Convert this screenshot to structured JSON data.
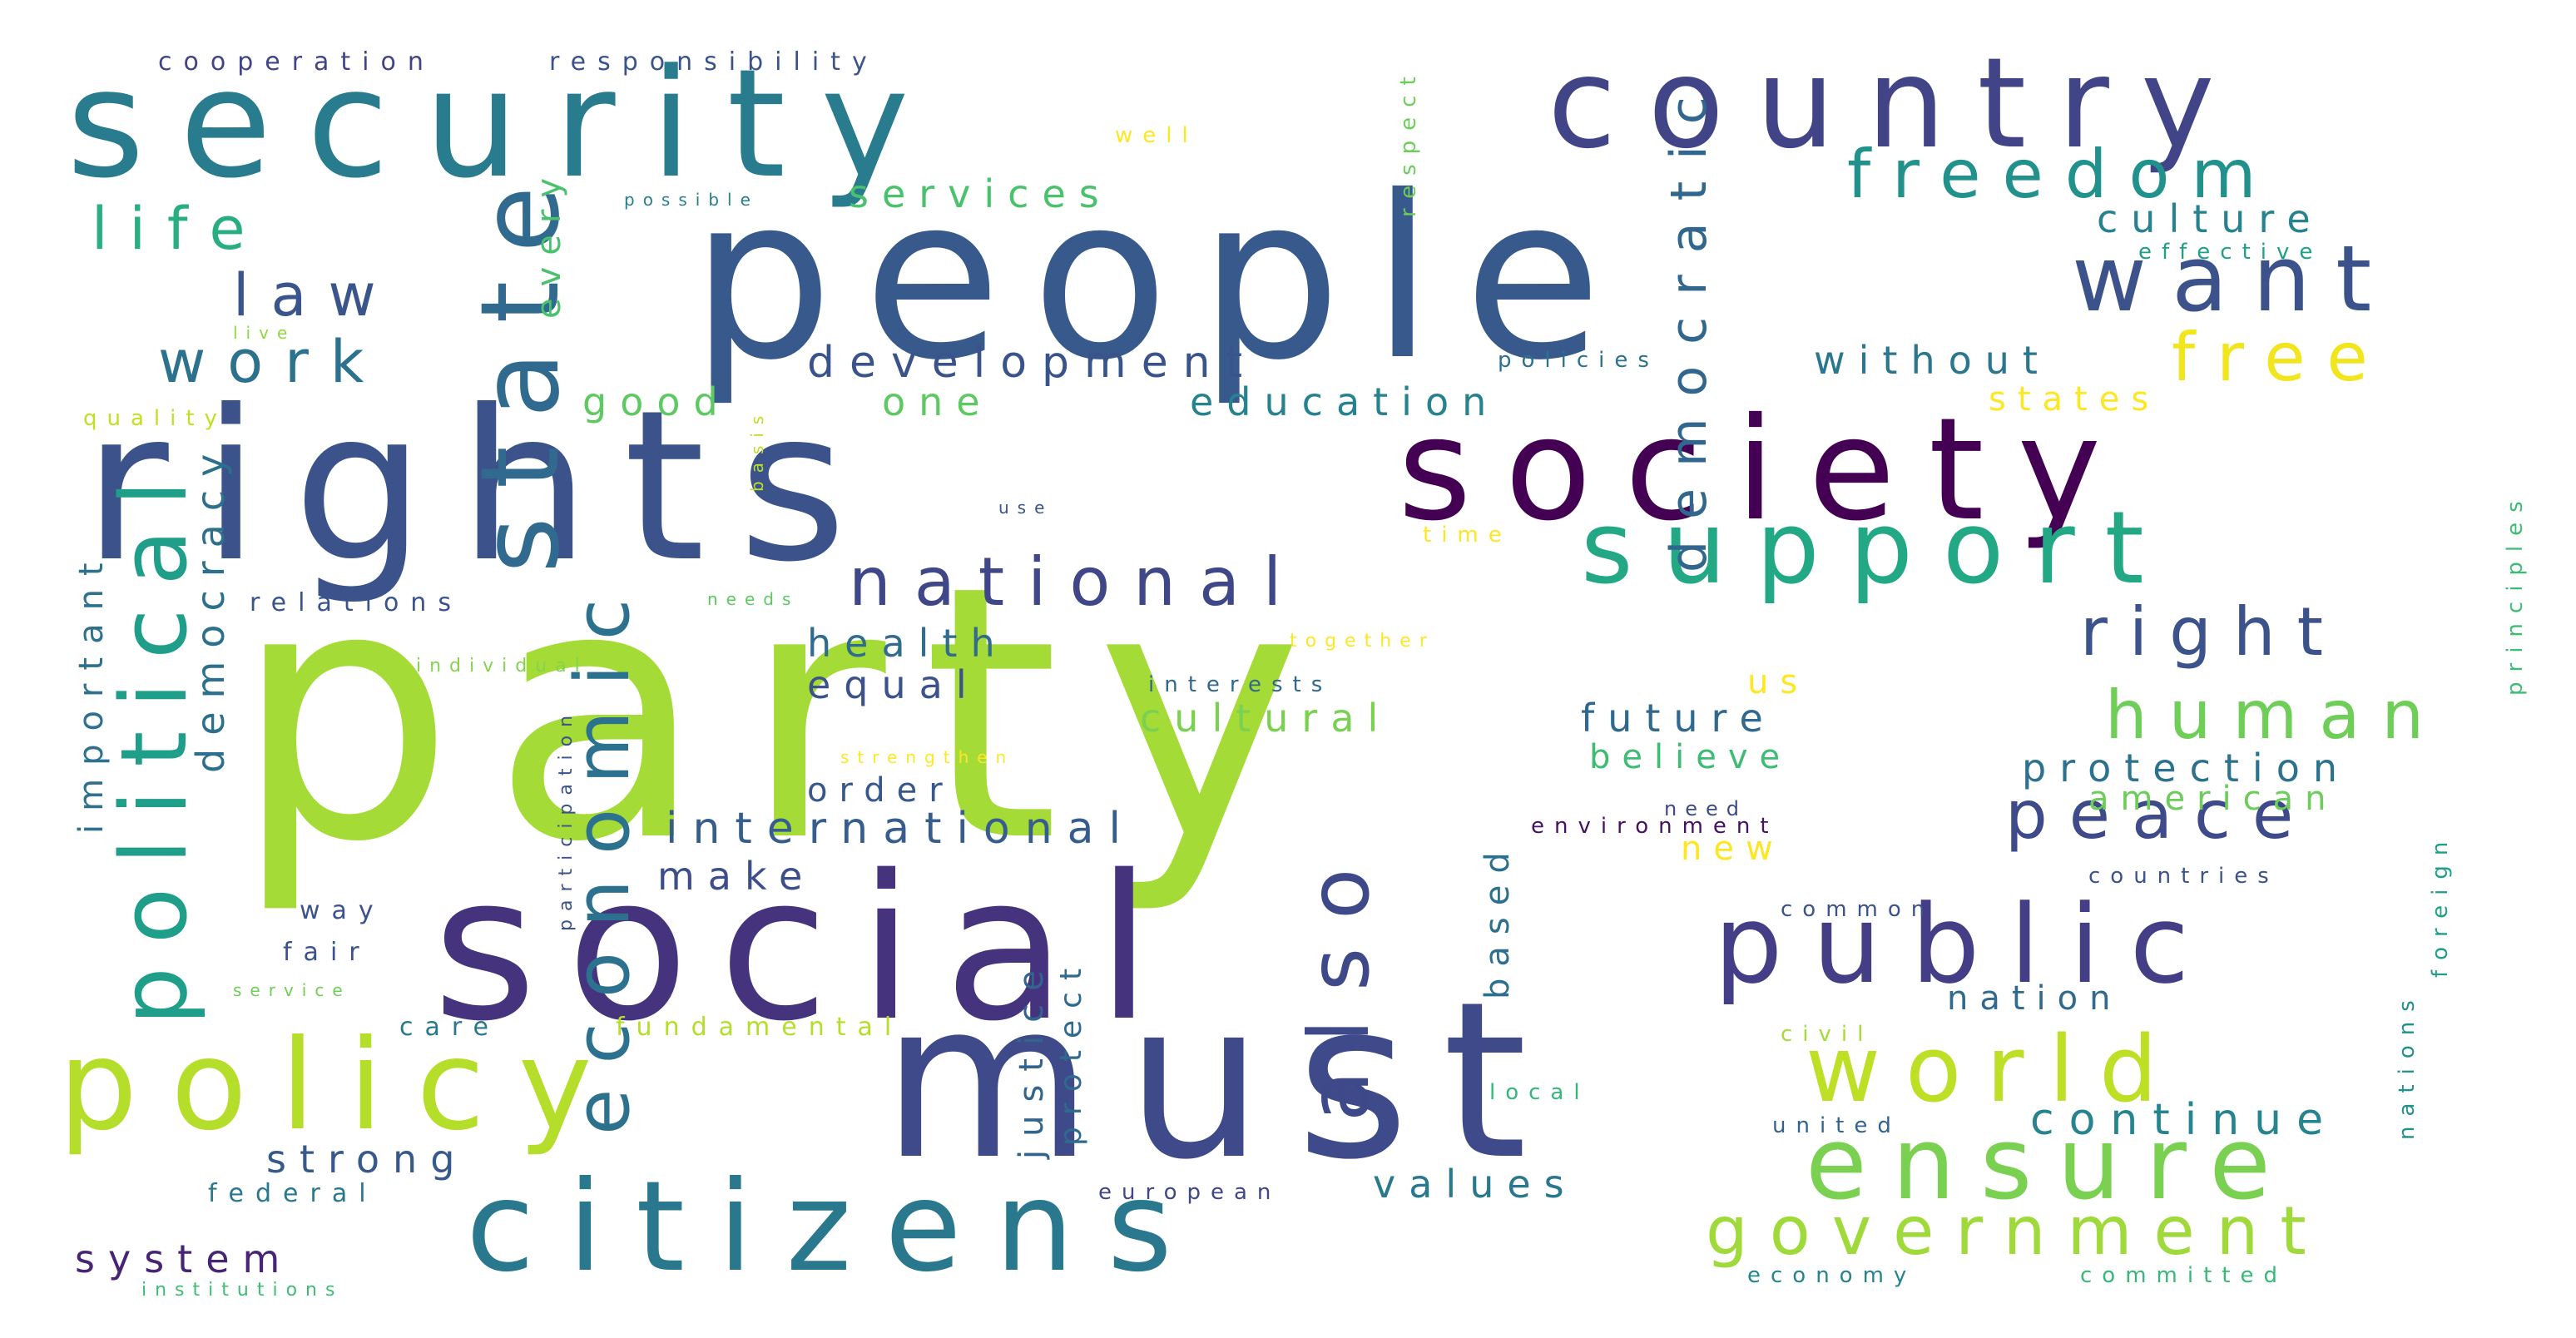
{
  "words": [
    {
      "text": "party",
      "color": "#a5db36"
    },
    {
      "text": "people",
      "color": "#38598c"
    },
    {
      "text": "rights",
      "color": "#3b528b"
    },
    {
      "text": "social",
      "color": "#46337e"
    },
    {
      "text": "must",
      "color": "#3e4a89"
    },
    {
      "text": "security",
      "color": "#287c8e"
    },
    {
      "text": "country",
      "color": "#414487"
    },
    {
      "text": "society",
      "color": "#440154"
    },
    {
      "text": "public",
      "color": "#433e85"
    },
    {
      "text": "citizens",
      "color": "#2a788e"
    },
    {
      "text": "policy",
      "color": "#b5de2b"
    },
    {
      "text": "state",
      "color": "#306a8e"
    },
    {
      "text": "support",
      "color": "#22a884"
    },
    {
      "text": "also",
      "color": "#3e4989"
    },
    {
      "text": "economic",
      "color": "#2c728e"
    },
    {
      "text": "political",
      "color": "#1f9e89"
    },
    {
      "text": "ensure",
      "color": "#7ad151"
    },
    {
      "text": "world",
      "color": "#bddf26"
    },
    {
      "text": "want",
      "color": "#3b528b"
    },
    {
      "text": "national",
      "color": "#3f4788"
    },
    {
      "text": "freedom",
      "color": "#21918c"
    },
    {
      "text": "government",
      "color": "#9fda3a"
    },
    {
      "text": "right",
      "color": "#3b528b"
    },
    {
      "text": "human",
      "color": "#6ece58"
    },
    {
      "text": "peace",
      "color": "#3e4a89"
    },
    {
      "text": "free",
      "color": "#f1e51d"
    },
    {
      "text": "life",
      "color": "#28ae80"
    },
    {
      "text": "work",
      "color": "#2c718e"
    },
    {
      "text": "law",
      "color": "#3a548c"
    },
    {
      "text": "democratic",
      "color": "#31668e"
    },
    {
      "text": "international",
      "color": "#365d8d"
    },
    {
      "text": "development",
      "color": "#3a538b"
    },
    {
      "text": "continue",
      "color": "#25848e"
    },
    {
      "text": "democracy",
      "color": "#2d708e"
    },
    {
      "text": "cultural",
      "color": "#7ad151"
    },
    {
      "text": "services",
      "color": "#4ac16d"
    },
    {
      "text": "important",
      "color": "#2d718e"
    },
    {
      "text": "education",
      "color": "#26828e"
    },
    {
      "text": "health",
      "color": "#2f6c8e"
    },
    {
      "text": "future",
      "color": "#31688e"
    },
    {
      "text": "values",
      "color": "#2a788e"
    },
    {
      "text": "protection",
      "color": "#2c728e"
    },
    {
      "text": "strong",
      "color": "#38598c"
    },
    {
      "text": "good",
      "color": "#5ec962"
    },
    {
      "text": "one",
      "color": "#5ec962"
    },
    {
      "text": "without",
      "color": "#2a768e"
    },
    {
      "text": "culture",
      "color": "#26828e"
    },
    {
      "text": "justice",
      "color": "#32648e"
    },
    {
      "text": "protect",
      "color": "#306a8e"
    },
    {
      "text": "equal",
      "color": "#3b528b"
    },
    {
      "text": "make",
      "color": "#3d4e8a"
    },
    {
      "text": "system",
      "color": "#482475"
    },
    {
      "text": "american",
      "color": "#6ccd5a"
    },
    {
      "text": "believe",
      "color": "#3fbc73"
    },
    {
      "text": "nation",
      "color": "#306a8e"
    },
    {
      "text": "order",
      "color": "#38588c"
    },
    {
      "text": "every",
      "color": "#4ac16d"
    },
    {
      "text": "based",
      "color": "#2e6f8e"
    },
    {
      "text": "states",
      "color": "#fde725"
    },
    {
      "text": "new",
      "color": "#fde725"
    },
    {
      "text": "cooperation",
      "color": "#414487"
    },
    {
      "text": "responsibility",
      "color": "#3b528b"
    },
    {
      "text": "relations",
      "color": "#3b528b"
    },
    {
      "text": "fundamental",
      "color": "#b5de2b"
    },
    {
      "text": "respect",
      "color": "#6ccd5a"
    },
    {
      "text": "interests",
      "color": "#31688e"
    },
    {
      "text": "policies",
      "color": "#2c728e"
    },
    {
      "text": "effective",
      "color": "#1fa188"
    },
    {
      "text": "countries",
      "color": "#3b528b"
    },
    {
      "text": "environment",
      "color": "#471063"
    },
    {
      "text": "us",
      "color": "#fde725"
    },
    {
      "text": "fair",
      "color": "#3b528b"
    },
    {
      "text": "way",
      "color": "#3b528b"
    },
    {
      "text": "federal",
      "color": "#2a788e"
    },
    {
      "text": "care",
      "color": "#2a788e"
    },
    {
      "text": "economy",
      "color": "#25848e"
    },
    {
      "text": "committed",
      "color": "#37b878"
    },
    {
      "text": "united",
      "color": "#33638d"
    },
    {
      "text": "common",
      "color": "#3b528b"
    },
    {
      "text": "civil",
      "color": "#a5db36"
    },
    {
      "text": "local",
      "color": "#35b779"
    },
    {
      "text": "european",
      "color": "#3f4788"
    },
    {
      "text": "foreign",
      "color": "#1f9e89"
    },
    {
      "text": "nations",
      "color": "#20928c"
    },
    {
      "text": "principles",
      "color": "#3dbc74"
    },
    {
      "text": "quality",
      "color": "#c2df23"
    },
    {
      "text": "live",
      "color": "#8fd744"
    },
    {
      "text": "possible",
      "color": "#277f8e"
    },
    {
      "text": "well",
      "color": "#fde725"
    },
    {
      "text": "basis",
      "color": "#bddf26"
    },
    {
      "text": "use",
      "color": "#3b528b"
    },
    {
      "text": "time",
      "color": "#fde725"
    },
    {
      "text": "needs",
      "color": "#5ec962"
    },
    {
      "text": "together",
      "color": "#fde725"
    },
    {
      "text": "individual",
      "color": "#84d44b"
    },
    {
      "text": "strengthen",
      "color": "#fde725"
    },
    {
      "text": "participation",
      "color": "#3b528b"
    },
    {
      "text": "need",
      "color": "#3e4989"
    },
    {
      "text": "service",
      "color": "#6ece58"
    },
    {
      "text": "institutions",
      "color": "#3fbc73"
    }
  ]
}
